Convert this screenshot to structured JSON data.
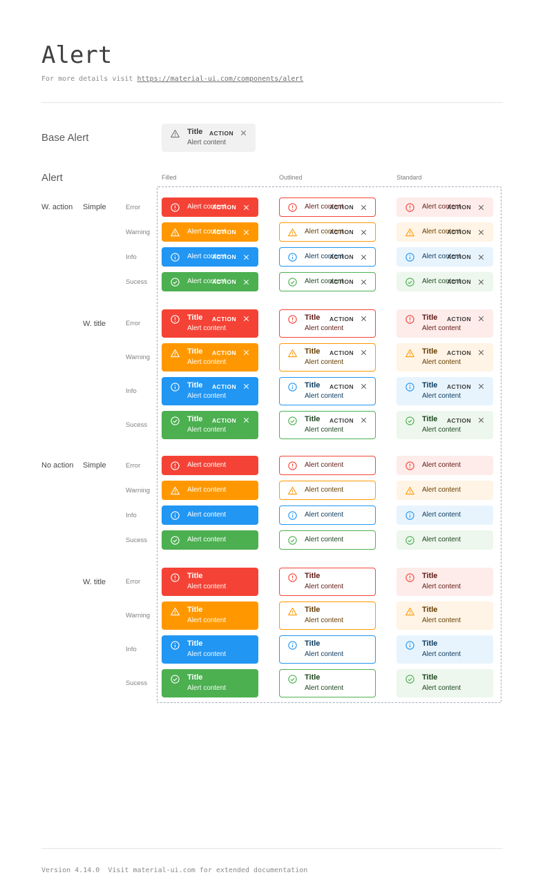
{
  "page": {
    "title": "Alert",
    "subtitle_prefix": "For more details visit ",
    "subtitle_link": "https://material-ui.com/components/alert",
    "footer": "Version 4.14.0  Visit material-ui.com for extended documentation"
  },
  "base_alert_section": {
    "label": "Base Alert",
    "alert": {
      "title": "Title",
      "content": "Alert content",
      "action": "ACTION"
    }
  },
  "alert_section": {
    "label": "Alert",
    "columns": [
      "Filled",
      "Outlined",
      "Standard"
    ],
    "row_groups": [
      {
        "action_label": "W. action",
        "subgroups": [
          {
            "style_label": "Simple",
            "with_title": false,
            "with_action": true
          },
          {
            "style_label": "W. title",
            "with_title": true,
            "with_action": true
          }
        ]
      },
      {
        "action_label": "No action",
        "subgroups": [
          {
            "style_label": "Simple",
            "with_title": false,
            "with_action": false
          },
          {
            "style_label": "W. title",
            "with_title": true,
            "with_action": false
          }
        ]
      }
    ],
    "severities": [
      {
        "id": "error",
        "label": "Error"
      },
      {
        "id": "warning",
        "label": "Warning"
      },
      {
        "id": "info",
        "label": "Info"
      },
      {
        "id": "success",
        "label": "Sucess"
      }
    ],
    "alert_text": {
      "title": "Title",
      "content": "Alert content",
      "action": "ACTION"
    }
  },
  "colors": {
    "error": {
      "main": "#f44336",
      "bg": "#fdecea",
      "text": "#611a15"
    },
    "warning": {
      "main": "#ff9800",
      "bg": "#fff4e5",
      "text": "#663c00"
    },
    "info": {
      "main": "#2196f3",
      "bg": "#e8f4fd",
      "text": "#0d3c61"
    },
    "success": {
      "main": "#4caf50",
      "bg": "#edf7ed",
      "text": "#1e4620"
    },
    "base": {
      "bg": "#f1f1f1",
      "icon": "#757575",
      "text": "#3a3a3a"
    }
  },
  "icons": {
    "error": "error-outline-icon",
    "warning": "warning-triangle-icon",
    "info": "info-outline-icon",
    "success": "check-circle-icon",
    "close": "close-icon"
  }
}
